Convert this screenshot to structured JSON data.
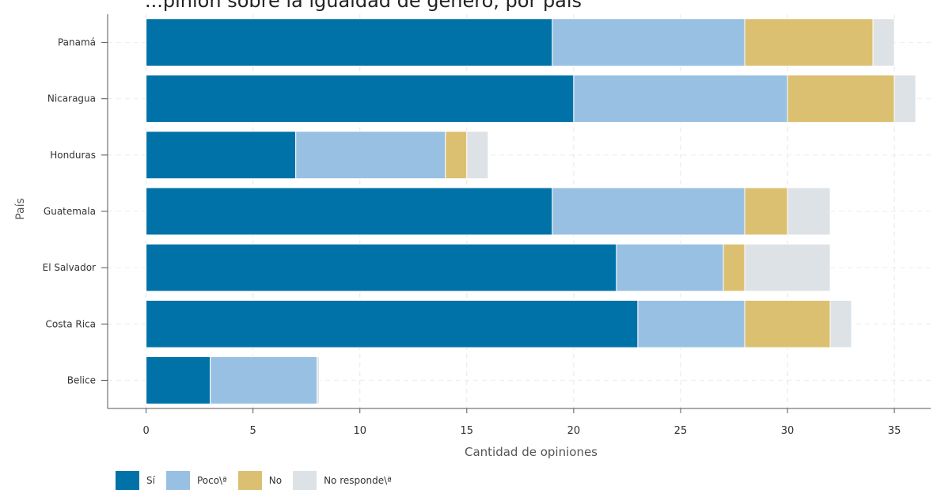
{
  "page_title": "...pinión sobre la igualdad de género, por país",
  "chart_data": {
    "type": "bar",
    "orientation": "horizontal",
    "stacked": true,
    "title": "",
    "xlabel": "Cantidad de opiniones",
    "ylabel": "País",
    "categories": [
      "Panamá",
      "Nicaragua",
      "Honduras",
      "Guatemala",
      "El Salvador",
      "Costa Rica",
      "Belice"
    ],
    "series": [
      {
        "name": "Sí",
        "color": "#0072a8",
        "values": [
          19,
          20,
          7,
          19,
          22,
          23,
          3
        ]
      },
      {
        "name": "Poco\\ª",
        "color": "#98c0e2",
        "values": [
          9,
          10,
          7,
          9,
          5,
          5,
          5
        ]
      },
      {
        "name": "No",
        "color": "#dcc071",
        "values": [
          6,
          5,
          1,
          2,
          1,
          4,
          0
        ]
      },
      {
        "name": "No responde\\ª",
        "color": "#dde2e6",
        "values": [
          1,
          1,
          1,
          2,
          4,
          1,
          0.1
        ]
      }
    ],
    "xlim": [
      -1.8,
      36.7
    ],
    "xticks": [
      0,
      5,
      10,
      15,
      20,
      25,
      30,
      35
    ],
    "grid": true,
    "legend_position": "bottom-left"
  }
}
